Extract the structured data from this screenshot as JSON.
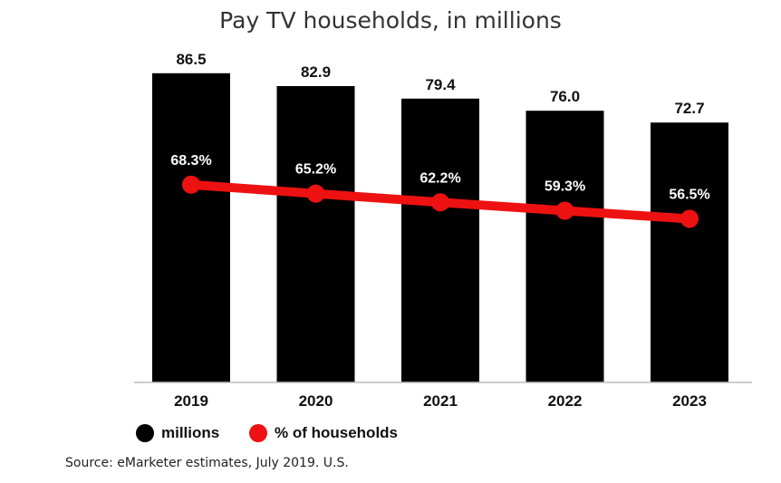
{
  "chart_data": {
    "type": "bar",
    "title": "Pay TV households, in millions",
    "categories": [
      "2019",
      "2020",
      "2021",
      "2022",
      "2023"
    ],
    "series": [
      {
        "name": "millions",
        "type": "bar",
        "values": [
          86.5,
          82.9,
          79.4,
          76.0,
          72.7
        ],
        "labels": [
          "86.5",
          "82.9",
          "79.4",
          "76.0",
          "72.7"
        ]
      },
      {
        "name": "% of households",
        "type": "line",
        "values": [
          68.3,
          65.2,
          62.2,
          59.3,
          56.5
        ],
        "labels": [
          "68.3%",
          "65.2%",
          "62.2%",
          "59.3%",
          "56.5%"
        ]
      }
    ],
    "ylim_bars": [
      0,
      90
    ],
    "ylim_line": [
      0,
      100
    ],
    "grid": false,
    "legend_position": "bottom-left",
    "source": "Source: eMarketer estimates, July 2019. U.S."
  },
  "colors": {
    "bar": "#000000",
    "line": "#ee1111",
    "axis": "#bbbbbb"
  }
}
